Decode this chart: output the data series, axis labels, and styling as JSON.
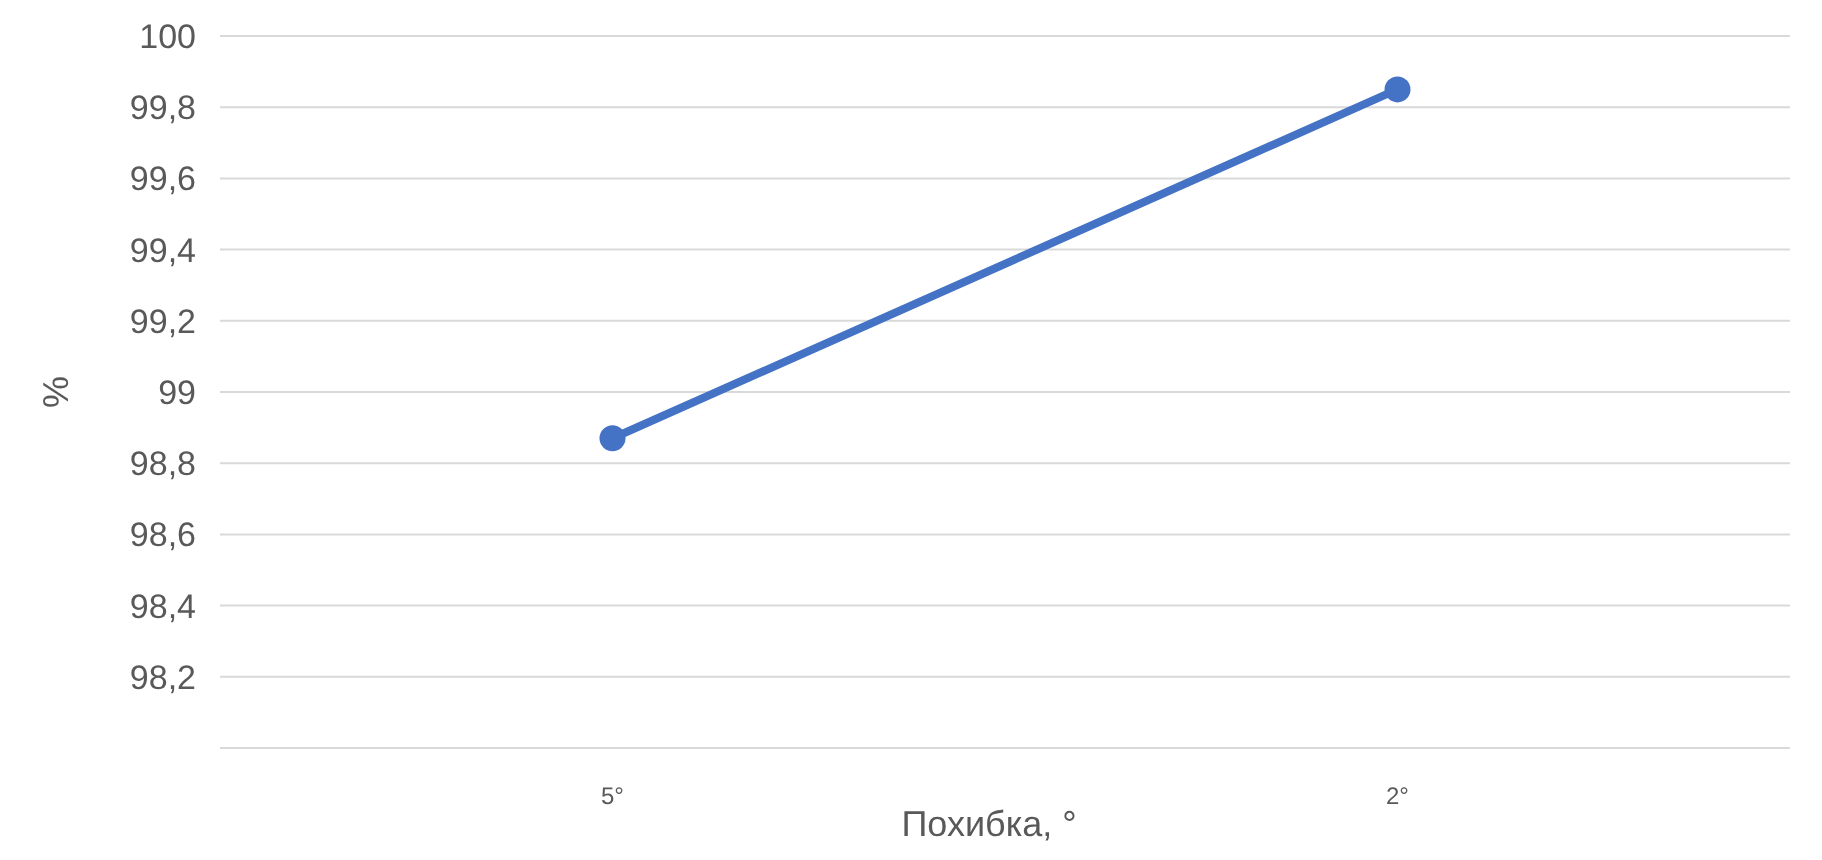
{
  "chart_data": {
    "type": "line",
    "xlabel": "Похибка, °",
    "ylabel": "%",
    "categories": [
      "5°",
      "2°"
    ],
    "series": [
      {
        "color": "#4472c4",
        "values": [
          98.87,
          99.85
        ]
      }
    ],
    "ylim": [
      98,
      100
    ],
    "yticks": [
      {
        "value": 98,
        "label": null
      },
      {
        "value": 98.2,
        "label": "98,2"
      },
      {
        "value": 98.4,
        "label": "98,4"
      },
      {
        "value": 98.6,
        "label": "98,6"
      },
      {
        "value": 98.8,
        "label": "98,8"
      },
      {
        "value": 99,
        "label": "99"
      },
      {
        "value": 99.2,
        "label": "99,2"
      },
      {
        "value": 99.4,
        "label": "99,4"
      },
      {
        "value": 99.6,
        "label": "99,6"
      },
      {
        "value": 99.8,
        "label": "99,8"
      },
      {
        "value": 100,
        "label": "100"
      }
    ],
    "grid": "y",
    "marker": "circle",
    "line_style": "solid"
  }
}
